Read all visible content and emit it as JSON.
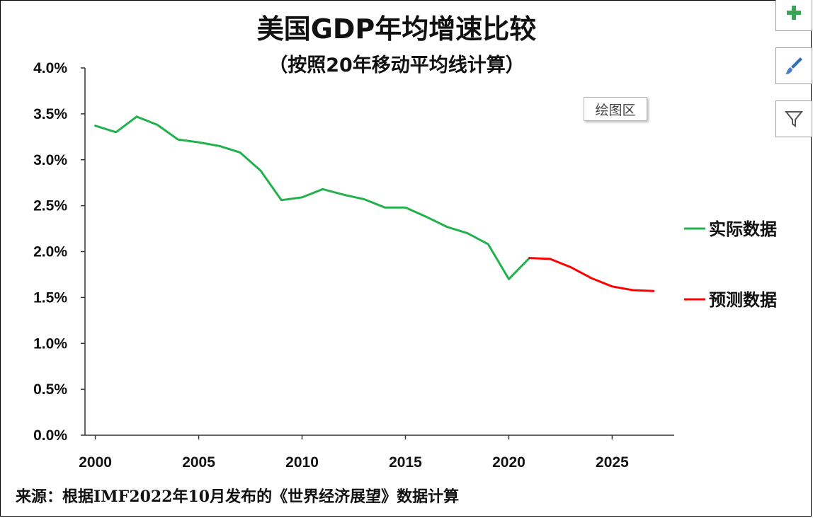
{
  "title": "美国GDP年均增速比较",
  "subtitle": "（按照20年移动平均线计算）",
  "source": "来源：根据IMF2022年10月发布的《世界经济展望》数据计算",
  "tooltip": "绘图区",
  "toolbar": {
    "icons": [
      "plus-icon",
      "brush-icon",
      "filter-icon"
    ]
  },
  "colors": {
    "actual": "#22b14c",
    "forecast": "#ff0000",
    "axis": "#333333"
  },
  "chart_data": {
    "type": "line",
    "title": "美国GDP年均增速比较",
    "subtitle": "（按照20年移动平均线计算）",
    "xlabel": "",
    "ylabel": "",
    "ylim": [
      0,
      0.04
    ],
    "xlim": [
      1999.5,
      2028.0
    ],
    "yticks": [
      "0.0%",
      "0.5%",
      "1.0%",
      "1.5%",
      "2.0%",
      "2.5%",
      "3.0%",
      "3.5%",
      "4.0%"
    ],
    "xticks": [
      "2000",
      "2005",
      "2010",
      "2015",
      "2020",
      "2025"
    ],
    "grid": false,
    "legend_position": "right",
    "series": [
      {
        "name": "实际数据",
        "color": "#22b14c",
        "x": [
          2000,
          2001,
          2002,
          2003,
          2004,
          2005,
          2006,
          2007,
          2008,
          2009,
          2010,
          2011,
          2012,
          2013,
          2014,
          2015,
          2016,
          2017,
          2018,
          2019,
          2020,
          2021
        ],
        "y": [
          0.0337,
          0.033,
          0.0347,
          0.0338,
          0.0322,
          0.0319,
          0.0315,
          0.0308,
          0.0288,
          0.0256,
          0.0259,
          0.0268,
          0.0262,
          0.0257,
          0.0248,
          0.0248,
          0.0238,
          0.0227,
          0.022,
          0.0208,
          0.017,
          0.0193
        ]
      },
      {
        "name": "预测数据",
        "color": "#ff0000",
        "x": [
          2021,
          2022,
          2023,
          2024,
          2025,
          2026,
          2027
        ],
        "y": [
          0.0193,
          0.0192,
          0.0183,
          0.0171,
          0.0162,
          0.0158,
          0.0157
        ]
      }
    ]
  }
}
